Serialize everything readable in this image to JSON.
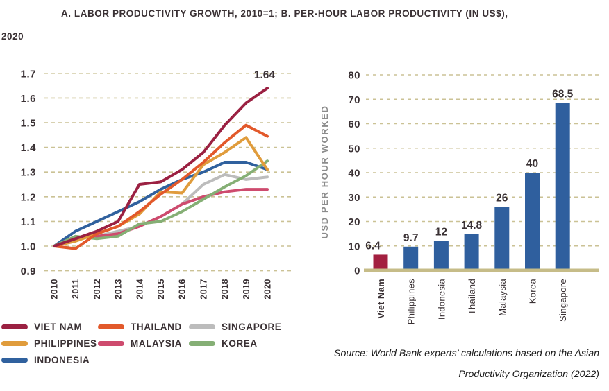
{
  "title": {
    "line1": "A. LABOR PRODUCTIVITY GROWTH, 2010=1; B. PER-HOUR LABOR PRODUCTIVITY (IN US$),",
    "line2": "2020"
  },
  "source": {
    "line1": "Source: World Bank experts’ calculations based on the Asian",
    "line2": "Productivity Organization (2022)"
  },
  "colors": {
    "vietnam": "#9B2142",
    "thailand": "#E2592B",
    "philippines": "#E09C3C",
    "indonesia": "#30619E",
    "singapore": "#BCBCBC",
    "malaysia": "#CE4B6E",
    "korea": "#85AF75",
    "bar_blue": "#2F5F9E",
    "bar_red": "#A32040",
    "axis_text": "#3A3134",
    "grid": "#CBC295",
    "baseline": "#C6BC88",
    "ylabel_gray": "#8C8C8C"
  },
  "chart_data": [
    {
      "type": "line",
      "title": "A. Labor productivity growth, 2010=1",
      "x": [
        2010,
        2011,
        2012,
        2013,
        2014,
        2015,
        2016,
        2017,
        2018,
        2019,
        2020
      ],
      "ylim": [
        0.9,
        1.7
      ],
      "yticks": [
        "0.9",
        "1.0",
        "1.1",
        "1.2",
        "1.3",
        "1.4",
        "1.5",
        "1.6",
        "1.7"
      ],
      "grid": true,
      "annotation": {
        "text": "1.64",
        "series": "VIET NAM",
        "year": 2020,
        "value": 1.64
      },
      "series": [
        {
          "name": "SINGAPORE",
          "color_key": "singapore",
          "values": [
            1.0,
            1.03,
            1.04,
            1.06,
            1.08,
            1.12,
            1.17,
            1.25,
            1.29,
            1.27,
            1.28
          ]
        },
        {
          "name": "MALAYSIA",
          "color_key": "malaysia",
          "values": [
            1.0,
            1.03,
            1.04,
            1.05,
            1.08,
            1.12,
            1.17,
            1.2,
            1.22,
            1.23,
            1.23
          ]
        },
        {
          "name": "INDONESIA",
          "color_key": "indonesia",
          "values": [
            1.0,
            1.06,
            1.1,
            1.14,
            1.18,
            1.23,
            1.27,
            1.3,
            1.34,
            1.34,
            1.31
          ]
        },
        {
          "name": "KOREA",
          "color_key": "korea",
          "values": [
            1.0,
            1.04,
            1.03,
            1.04,
            1.09,
            1.1,
            1.14,
            1.19,
            1.24,
            1.285,
            1.345
          ]
        },
        {
          "name": "PHILIPPINES",
          "color_key": "philippines",
          "values": [
            1.0,
            1.02,
            1.05,
            1.08,
            1.13,
            1.22,
            1.215,
            1.33,
            1.38,
            1.44,
            1.31
          ]
        },
        {
          "name": "THAILAND",
          "color_key": "thailand",
          "values": [
            1.0,
            0.99,
            1.05,
            1.08,
            1.14,
            1.21,
            1.27,
            1.34,
            1.42,
            1.49,
            1.445
          ]
        },
        {
          "name": "VIET NAM",
          "color_key": "vietnam",
          "values": [
            1.0,
            1.03,
            1.06,
            1.1,
            1.25,
            1.26,
            1.31,
            1.38,
            1.49,
            1.58,
            1.64
          ]
        }
      ],
      "legend_rows": [
        [
          "VIET NAM",
          "THAILAND",
          "SINGAPORE"
        ],
        [
          "PHILIPPINES",
          "MALAYSIA",
          "KOREA"
        ],
        [
          "INDONESIA"
        ]
      ],
      "legend_position": "below"
    },
    {
      "type": "bar",
      "title": "B. Per-hour labor productivity (in US$), 2020",
      "ylabel": "USD PER HOUR WORKED",
      "categories": [
        "Viet Nam",
        "Philippines",
        "Indonesia",
        "Thailand",
        "Malaysia",
        "Korea",
        "Singapore"
      ],
      "values": [
        6.4,
        9.7,
        12,
        14.8,
        26,
        40,
        68.5
      ],
      "value_labels": [
        "6.4",
        "9.7",
        "12",
        "14.8",
        "26",
        "40",
        "68.5"
      ],
      "highlight_category": "Viet Nam",
      "ylim": [
        0,
        80
      ],
      "yticks": [
        "0",
        "10",
        "20",
        "30",
        "40",
        "50",
        "60",
        "70",
        "80"
      ],
      "grid": true
    }
  ]
}
